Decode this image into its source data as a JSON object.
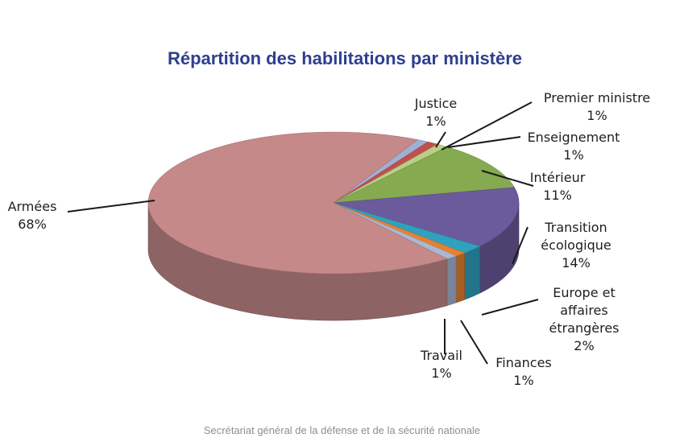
{
  "chart_data": {
    "type": "pie",
    "title": "Répartition des habilitations par ministère",
    "slices": [
      {
        "label": [
          "Armées"
        ],
        "value": 68,
        "value_label": "68%",
        "color": "#c58989"
      },
      {
        "label": [
          "Justice"
        ],
        "value": 1,
        "value_label": "1%",
        "color": "#9fb0d6"
      },
      {
        "label": [
          "Premier ministre"
        ],
        "value": 1,
        "value_label": "1%",
        "color": "#c0504d"
      },
      {
        "label": [
          "Enseignement"
        ],
        "value": 1,
        "value_label": "1%",
        "color": "#b9cf86"
      },
      {
        "label": [
          "Intérieur"
        ],
        "value": 11,
        "value_label": "11%",
        "color": "#86aa4f"
      },
      {
        "label": [
          "Transition",
          "écologique"
        ],
        "value": 14,
        "value_label": "14%",
        "color": "#6b5a9c"
      },
      {
        "label": [
          "Europe et",
          "affaires",
          "étrangères"
        ],
        "value": 2,
        "value_label": "2%",
        "color": "#2fa1bd"
      },
      {
        "label": [
          "Finances"
        ],
        "value": 1,
        "value_label": "1%",
        "color": "#e8802f"
      },
      {
        "label": [
          "Travail"
        ],
        "value": 1,
        "value_label": "1%",
        "color": "#aab7d3"
      }
    ],
    "style": "3d-pie",
    "legend": "none"
  },
  "caption": "Secrétariat général de la défense et de la sécurité nationale"
}
